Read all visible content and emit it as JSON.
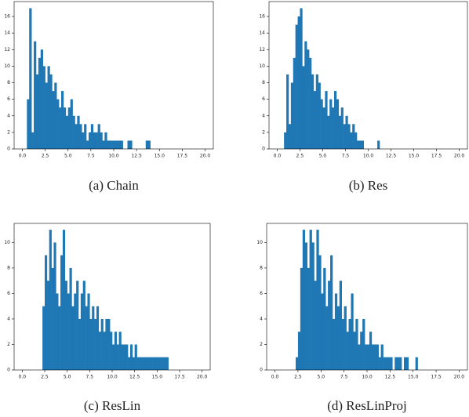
{
  "chart_data": [
    {
      "type": "histogram",
      "title": "(a) Chain",
      "color": "#1f77b4",
      "bins": [
        0.5,
        0.75,
        1,
        1.25,
        1.5,
        1.75,
        2,
        2.25,
        2.5,
        2.75,
        3,
        3.25,
        3.5,
        3.75,
        4,
        4.25,
        4.5,
        4.75,
        5,
        5.25,
        5.5,
        5.75,
        6,
        6.25,
        6.5,
        6.75,
        7,
        7.25,
        7.5,
        7.75,
        8,
        8.25,
        8.5,
        8.75,
        9,
        9.25,
        9.5,
        9.75,
        10,
        10.25,
        10.5,
        10.75,
        11,
        11.25,
        11.5,
        11.75,
        12,
        12.25,
        12.5,
        12.75,
        13,
        13.25,
        13.5,
        13.75,
        14
      ],
      "values": [
        6,
        17,
        2,
        13,
        9,
        11,
        12,
        10,
        8,
        10,
        9,
        7,
        8,
        6,
        5,
        7,
        5,
        4,
        5,
        6,
        4,
        3,
        4,
        3,
        2,
        3,
        1,
        2,
        3,
        2,
        2,
        3,
        2,
        1,
        2,
        1,
        1,
        1,
        1,
        1,
        1,
        1,
        0,
        0,
        1,
        1,
        0,
        0,
        0,
        0,
        0,
        0,
        1,
        1
      ],
      "xlim": [
        -0.9,
        20.9
      ],
      "ylim": [
        0,
        17.8
      ],
      "xticks": [
        {
          "value": 0,
          "label": "0.0"
        },
        {
          "value": 2.5,
          "label": "2.5"
        },
        {
          "value": 5,
          "label": "5.0"
        },
        {
          "value": 7.5,
          "label": "7.5"
        },
        {
          "value": 10,
          "label": "10.0"
        },
        {
          "value": 12.5,
          "label": "12.5"
        },
        {
          "value": 15,
          "label": "15.0"
        },
        {
          "value": 17.5,
          "label": "17.5"
        },
        {
          "value": 20,
          "label": "20.0"
        }
      ],
      "yticks": [
        0,
        2,
        4,
        6,
        8,
        10,
        12,
        14,
        16
      ]
    },
    {
      "type": "histogram",
      "title": "(b) Res",
      "color": "#1f77b4",
      "bins": [
        0.75,
        1,
        1.25,
        1.5,
        1.75,
        2,
        2.25,
        2.5,
        2.75,
        3,
        3.25,
        3.5,
        3.75,
        4,
        4.25,
        4.5,
        4.75,
        5,
        5.25,
        5.5,
        5.75,
        6,
        6.25,
        6.5,
        6.75,
        7,
        7.25,
        7.5,
        7.75,
        8,
        8.25,
        8.5,
        8.75,
        9,
        9.25,
        9.5,
        9.75,
        10,
        10.25,
        10.5,
        10.75,
        11,
        11.25
      ],
      "values": [
        2,
        9,
        3,
        8,
        11,
        15,
        16,
        17,
        10,
        13,
        12,
        11,
        9,
        7,
        9,
        8,
        6,
        5,
        7,
        4,
        6,
        5,
        7,
        6,
        4,
        5,
        3,
        4,
        3,
        2,
        3,
        2,
        1,
        1,
        1,
        0,
        0,
        0,
        0,
        0,
        0,
        1
      ],
      "xlim": [
        -0.9,
        20.9
      ],
      "ylim": [
        0,
        17.8
      ],
      "xticks": [
        {
          "value": 0,
          "label": "0.0"
        },
        {
          "value": 2.5,
          "label": "2.5"
        },
        {
          "value": 5,
          "label": "5.0"
        },
        {
          "value": 7.5,
          "label": "7.5"
        },
        {
          "value": 10,
          "label": "10.0"
        },
        {
          "value": 12.5,
          "label": "12.5"
        },
        {
          "value": 15,
          "label": "15.0"
        },
        {
          "value": 17.5,
          "label": "17.5"
        },
        {
          "value": 20,
          "label": "20.0"
        }
      ],
      "yticks": [
        0,
        2,
        4,
        6,
        8,
        10,
        12,
        14,
        16
      ]
    },
    {
      "type": "histogram",
      "title": "(c) ResLin",
      "color": "#1f77b4",
      "bins": [
        2.25,
        2.5,
        2.75,
        3,
        3.25,
        3.5,
        3.75,
        4,
        4.25,
        4.5,
        4.75,
        5,
        5.25,
        5.5,
        5.75,
        6,
        6.25,
        6.5,
        6.75,
        7,
        7.25,
        7.5,
        7.75,
        8,
        8.25,
        8.5,
        8.75,
        9,
        9.25,
        9.5,
        9.75,
        10,
        10.25,
        10.5,
        10.75,
        11,
        11.25,
        11.5,
        11.75,
        12,
        12.25,
        12.5,
        12.75,
        13,
        13.25,
        13.5,
        13.75,
        14,
        14.25,
        14.5,
        14.75,
        15,
        15.25,
        15.5,
        15.75,
        16,
        16.25
      ],
      "values": [
        5,
        9,
        7,
        11,
        8,
        10,
        6,
        5,
        9,
        11,
        7,
        6,
        8,
        5,
        6,
        7,
        4,
        6,
        7,
        5,
        6,
        4,
        5,
        4,
        5,
        3,
        4,
        3,
        4,
        4,
        3,
        2,
        3,
        2,
        3,
        2,
        2,
        2,
        1,
        2,
        1,
        2,
        1,
        1,
        1,
        1,
        1,
        1,
        1,
        1,
        1,
        1,
        1,
        1,
        1,
        1
      ],
      "xlim": [
        -0.9,
        20.9
      ],
      "ylim": [
        0,
        11.5
      ],
      "xticks": [
        {
          "value": 0,
          "label": "0.0"
        },
        {
          "value": 2.5,
          "label": "2.5"
        },
        {
          "value": 5,
          "label": "5.0"
        },
        {
          "value": 7.5,
          "label": "7.5"
        },
        {
          "value": 10,
          "label": "10.0"
        },
        {
          "value": 12.5,
          "label": "12.5"
        },
        {
          "value": 15,
          "label": "15.0"
        },
        {
          "value": 17.5,
          "label": "17.5"
        },
        {
          "value": 20,
          "label": "20.0"
        }
      ],
      "yticks": [
        0,
        2,
        4,
        6,
        8,
        10
      ]
    },
    {
      "type": "histogram",
      "title": "(d) ResLinProj",
      "color": "#1f77b4",
      "bins": [
        2.25,
        2.5,
        2.75,
        3,
        3.25,
        3.5,
        3.75,
        4,
        4.25,
        4.5,
        4.75,
        5,
        5.25,
        5.5,
        5.75,
        6,
        6.25,
        6.5,
        6.75,
        7,
        7.25,
        7.5,
        7.75,
        8,
        8.25,
        8.5,
        8.75,
        9,
        9.25,
        9.5,
        9.75,
        10,
        10.25,
        10.5,
        10.75,
        11,
        11.25,
        11.5,
        11.75,
        12,
        12.25,
        12.5,
        12.75,
        13,
        13.25,
        13.5,
        13.75,
        14,
        14.25,
        14.5,
        14.75,
        15,
        15.25,
        15.5,
        15.75
      ],
      "values": [
        1,
        3,
        8,
        11,
        10,
        8,
        11,
        10,
        7,
        11,
        9,
        6,
        8,
        5,
        7,
        9,
        4,
        6,
        5,
        7,
        4,
        5,
        3,
        4,
        6,
        3,
        4,
        2,
        3,
        4,
        2,
        2,
        3,
        2,
        2,
        2,
        1,
        2,
        1,
        1,
        1,
        1,
        0,
        1,
        1,
        1,
        0,
        1,
        1,
        0,
        0,
        0,
        1,
        0
      ],
      "xlim": [
        -0.9,
        20.9
      ],
      "ylim": [
        0,
        11.5
      ],
      "xticks": [
        {
          "value": 0,
          "label": "0.0"
        },
        {
          "value": 2.5,
          "label": "2.5"
        },
        {
          "value": 5,
          "label": "5.0"
        },
        {
          "value": 7.5,
          "label": "7.5"
        },
        {
          "value": 10,
          "label": "10.0"
        },
        {
          "value": 12.5,
          "label": "12.5"
        },
        {
          "value": 15,
          "label": "15.0"
        },
        {
          "value": 17.5,
          "label": "17.5"
        },
        {
          "value": 20,
          "label": "20.0"
        }
      ],
      "yticks": [
        0,
        2,
        4,
        6,
        8,
        10
      ]
    }
  ]
}
